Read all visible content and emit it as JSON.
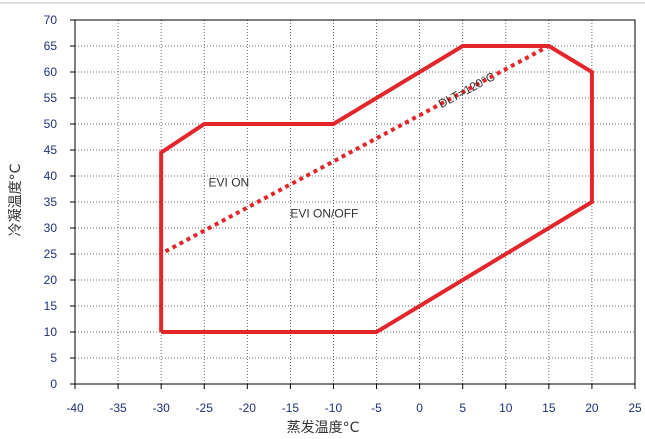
{
  "chart_data": {
    "type": "line",
    "xlabel": "蒸发温度°C",
    "ylabel": "冷凝温度°C",
    "xlim": [
      -40,
      25
    ],
    "ylim": [
      0,
      70
    ],
    "x_ticks": [
      -40,
      -35,
      -30,
      -25,
      -20,
      -15,
      -10,
      -5,
      0,
      5,
      10,
      15,
      20,
      25
    ],
    "y_ticks": [
      0,
      5,
      10,
      15,
      20,
      25,
      30,
      35,
      40,
      45,
      50,
      55,
      60,
      65,
      70
    ],
    "grid": true,
    "series": [
      {
        "style": "solid",
        "color": "#e3262b",
        "points": [
          [
            -30,
            10
          ],
          [
            -5,
            10
          ],
          [
            20,
            35
          ],
          [
            20,
            60
          ],
          [
            15,
            65
          ],
          [
            5,
            65
          ],
          [
            -10,
            50
          ],
          [
            -25,
            50
          ],
          [
            -30,
            44.5
          ],
          [
            -30,
            10
          ]
        ]
      },
      {
        "style": "dotted",
        "color": "#e3262b",
        "points": [
          [
            -29.5,
            25.5
          ],
          [
            15,
            65
          ]
        ]
      }
    ],
    "annotations": [
      {
        "text": "DLT=120°C",
        "x": 2.5,
        "y": 53,
        "rotate": true
      },
      {
        "text": "EVI ON",
        "x": -24.5,
        "y": 38
      },
      {
        "text": "EVI ON/OFF",
        "x": -15,
        "y": 32
      }
    ]
  }
}
